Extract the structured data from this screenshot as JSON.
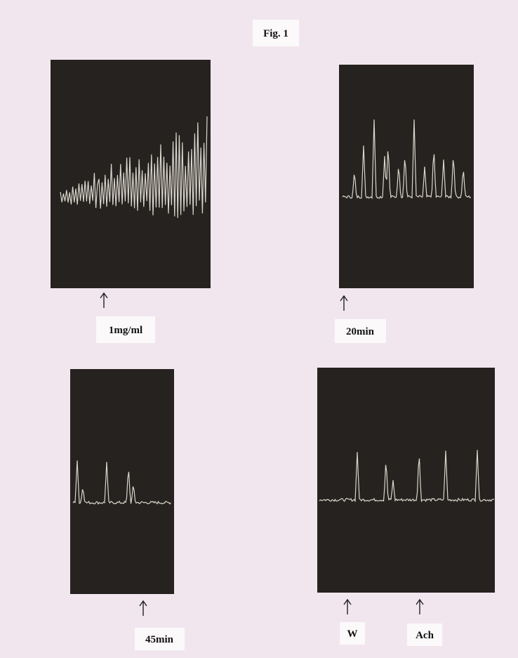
{
  "figure": {
    "title": "Fig. 1",
    "panels": [
      {
        "labels": [
          "1mg/ml"
        ]
      },
      {
        "labels": [
          "20min"
        ]
      },
      {
        "labels": [
          "45min"
        ]
      },
      {
        "labels": [
          "W",
          "Ach"
        ]
      }
    ]
  }
}
